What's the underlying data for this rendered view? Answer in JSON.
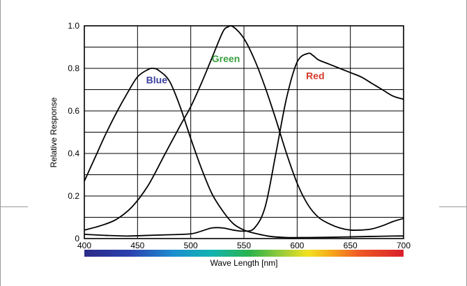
{
  "chart_data": {
    "type": "line",
    "xlabel": "Wave Length [nm]",
    "ylabel": "Relative Response",
    "xlim": [
      400,
      700
    ],
    "ylim": [
      0,
      1.0
    ],
    "grid": true,
    "x_ticks": [
      400,
      450,
      500,
      550,
      600,
      650,
      700
    ],
    "x_ticks_labels": [
      "400",
      "450",
      "500",
      "550",
      "600",
      "650",
      "700"
    ],
    "y_ticks": [
      0,
      0.2,
      0.4,
      0.6,
      0.8,
      1.0
    ],
    "y_ticks_labels": [
      "0",
      "0.2",
      "0.4",
      "0.6",
      "0.8",
      "1.0"
    ],
    "spectrum_bar": true,
    "series": [
      {
        "name": "Blue",
        "label_color": "#3a3f9e",
        "label_at": [
          468,
          0.73
        ],
        "points": [
          [
            400,
            0.27
          ],
          [
            410,
            0.38
          ],
          [
            420,
            0.49
          ],
          [
            430,
            0.59
          ],
          [
            440,
            0.68
          ],
          [
            450,
            0.76
          ],
          [
            460,
            0.795
          ],
          [
            465,
            0.8
          ],
          [
            470,
            0.79
          ],
          [
            480,
            0.74
          ],
          [
            490,
            0.62
          ],
          [
            500,
            0.47
          ],
          [
            510,
            0.33
          ],
          [
            520,
            0.21
          ],
          [
            530,
            0.13
          ],
          [
            540,
            0.07
          ],
          [
            550,
            0.04
          ],
          [
            560,
            0.025
          ],
          [
            575,
            0.01
          ],
          [
            590,
            0.005
          ],
          [
            610,
            0.005
          ],
          [
            630,
            0.006
          ],
          [
            650,
            0.008
          ],
          [
            670,
            0.01
          ],
          [
            690,
            0.012
          ],
          [
            700,
            0.012
          ]
        ]
      },
      {
        "name": "Green",
        "label_color": "#3aa040",
        "label_at": [
          533,
          0.83
        ],
        "points": [
          [
            400,
            0.04
          ],
          [
            415,
            0.06
          ],
          [
            430,
            0.09
          ],
          [
            445,
            0.15
          ],
          [
            460,
            0.25
          ],
          [
            475,
            0.39
          ],
          [
            490,
            0.53
          ],
          [
            500,
            0.62
          ],
          [
            510,
            0.73
          ],
          [
            520,
            0.85
          ],
          [
            530,
            0.97
          ],
          [
            535,
            0.995
          ],
          [
            540,
            0.995
          ],
          [
            550,
            0.94
          ],
          [
            560,
            0.84
          ],
          [
            570,
            0.71
          ],
          [
            580,
            0.56
          ],
          [
            590,
            0.4
          ],
          [
            600,
            0.26
          ],
          [
            610,
            0.16
          ],
          [
            620,
            0.1
          ],
          [
            630,
            0.07
          ],
          [
            640,
            0.05
          ],
          [
            650,
            0.04
          ],
          [
            660,
            0.04
          ],
          [
            670,
            0.045
          ],
          [
            680,
            0.06
          ],
          [
            690,
            0.08
          ],
          [
            700,
            0.095
          ]
        ]
      },
      {
        "name": "Red",
        "label_color": "#d63a2a",
        "label_at": [
          617,
          0.75
        ],
        "points": [
          [
            400,
            0.02
          ],
          [
            420,
            0.015
          ],
          [
            440,
            0.012
          ],
          [
            460,
            0.015
          ],
          [
            480,
            0.018
          ],
          [
            500,
            0.022
          ],
          [
            510,
            0.035
          ],
          [
            520,
            0.05
          ],
          [
            530,
            0.05
          ],
          [
            540,
            0.04
          ],
          [
            550,
            0.035
          ],
          [
            560,
            0.05
          ],
          [
            570,
            0.15
          ],
          [
            580,
            0.4
          ],
          [
            590,
            0.66
          ],
          [
            600,
            0.83
          ],
          [
            610,
            0.87
          ],
          [
            615,
            0.86
          ],
          [
            620,
            0.84
          ],
          [
            630,
            0.82
          ],
          [
            640,
            0.8
          ],
          [
            650,
            0.78
          ],
          [
            660,
            0.76
          ],
          [
            670,
            0.73
          ],
          [
            680,
            0.7
          ],
          [
            690,
            0.67
          ],
          [
            700,
            0.655
          ]
        ]
      }
    ]
  },
  "colors": {
    "plot_frame": "#000000",
    "grid": "#000000",
    "curve": "#000000"
  }
}
